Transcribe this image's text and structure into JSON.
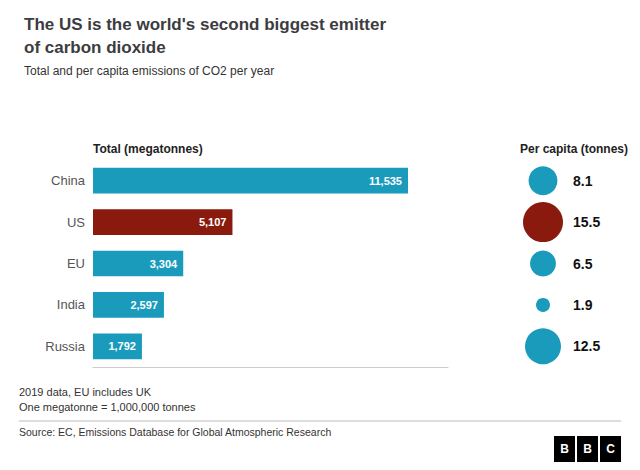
{
  "chart_data": [
    {
      "type": "bar",
      "orientation": "horizontal",
      "title": "The US is the world's second biggest emitter\nof carbon dioxide",
      "subtitle": "Total and per capita emissions of CO2 per year",
      "xlabel": "Total (megatonnes)",
      "categories": [
        "China",
        "US",
        "EU",
        "India",
        "Russia"
      ],
      "values": [
        11535,
        5107,
        3304,
        2597,
        1792
      ],
      "value_labels": [
        "11,535",
        "5,107",
        "3,304",
        "2,597",
        "1,792"
      ],
      "colors": [
        "#1a9bbc",
        "#8b1a0e",
        "#1a9bbc",
        "#1a9bbc",
        "#1a9bbc"
      ],
      "xlim": [
        0,
        13000
      ],
      "data_labels": true,
      "tick_labels": "y",
      "grid": false,
      "annotations": [
        "2019 data, EU includes UK",
        "One megatonne = 1,000,000 tonnes",
        "Source: EC, Emissions Database for Global Atmospheric Research",
        "BBC"
      ]
    },
    {
      "type": "bubble",
      "xlabel": "Per capita (tonnes)",
      "categories": [
        "China",
        "US",
        "EU",
        "India",
        "Russia"
      ],
      "values": [
        8.1,
        15.5,
        6.5,
        1.9,
        12.5
      ],
      "colors": [
        "#1a9bbc",
        "#8b1a0e",
        "#1a9bbc",
        "#1a9bbc",
        "#1a9bbc"
      ],
      "data_labels": true,
      "tick_labels": false,
      "grid": false
    }
  ]
}
